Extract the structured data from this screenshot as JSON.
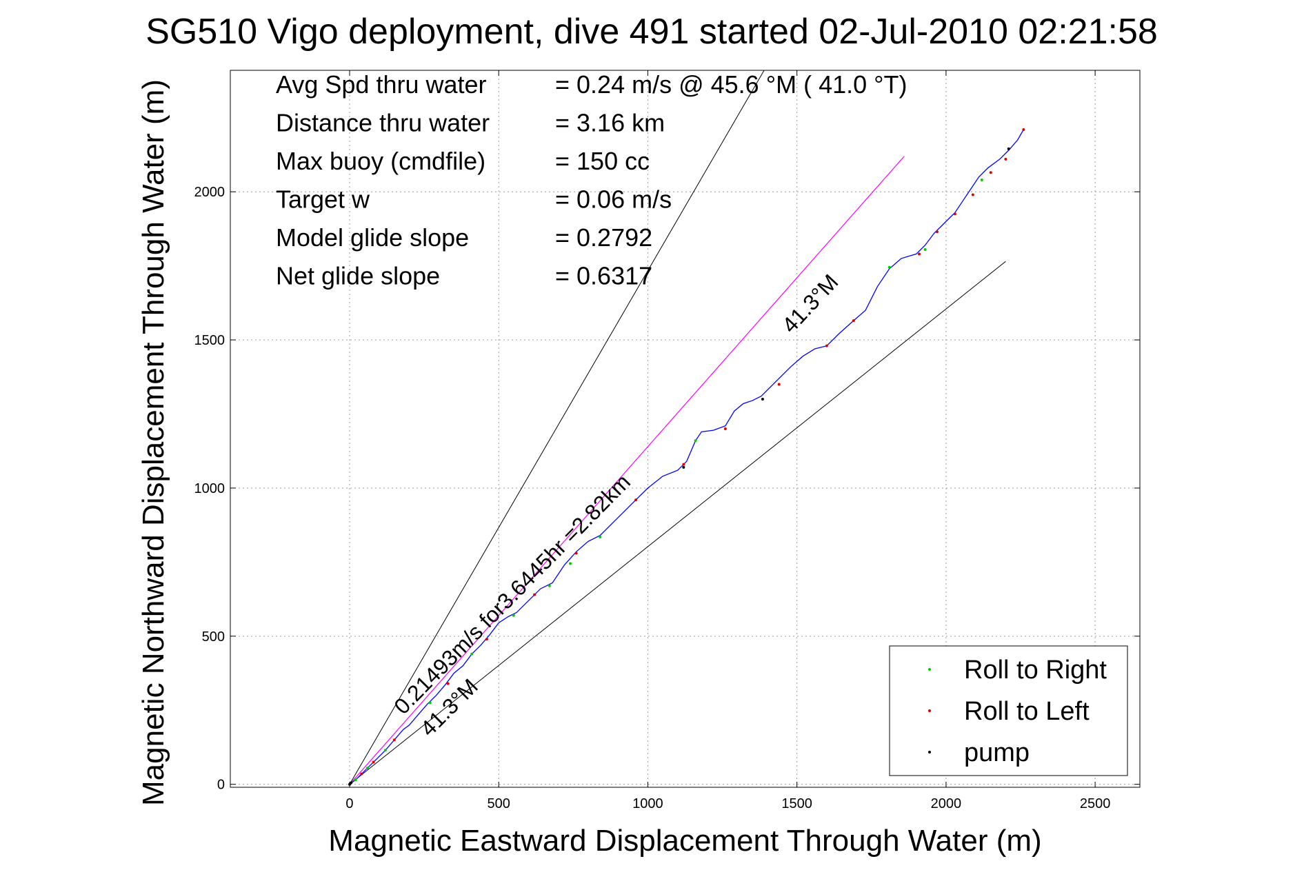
{
  "chart_data": {
    "type": "line",
    "title": "SG510 Vigo deployment, dive 491 started 02-Jul-2010 02:21:58",
    "xlabel": "Magnetic Eastward Displacement Through Water (m)",
    "ylabel": "Magnetic Northward Displacement Through Water (m)",
    "xlim": [
      -400,
      2650
    ],
    "ylim": [
      -10,
      2410
    ],
    "xticks": [
      0,
      500,
      1000,
      1500,
      2000,
      2500
    ],
    "yticks": [
      0,
      500,
      1000,
      1500,
      2000
    ],
    "grid": true,
    "info_lines": [
      {
        "label": "Avg Spd thru water",
        "value": "=  0.24 m/s @  45.6 °M ( 41.0 °T)"
      },
      {
        "label": "Distance thru water",
        "value": "=  3.16 km"
      },
      {
        "label": "Max buoy (cmdfile)",
        "value": "= 150 cc"
      },
      {
        "label": "Target w",
        "value": "= 0.06 m/s"
      },
      {
        "label": "Model glide slope",
        "value": "= 0.2792"
      },
      {
        "label": "Net glide slope",
        "value": "= 0.6317"
      }
    ],
    "annotations": {
      "speed_text": "0.21493m/s for3.6445hr =2.82km",
      "heading_text_upper": "41.3°M",
      "heading_text_lower": "41.3°M"
    },
    "lines": {
      "bracket_upper": {
        "x": [
          0,
          1390
        ],
        "y": [
          0,
          2410
        ]
      },
      "bracket_lower": {
        "x": [
          0,
          2200
        ],
        "y": [
          0,
          1765
        ]
      },
      "heading": {
        "x": [
          0,
          1860
        ],
        "y": [
          0,
          2120
        ]
      }
    },
    "series": [
      {
        "name": "track",
        "color": "#0000ff",
        "x": [
          0,
          20,
          40,
          60,
          80,
          100,
          120,
          150,
          180,
          200,
          230,
          260,
          290,
          320,
          350,
          380,
          410,
          440,
          470,
          500,
          530,
          560,
          600,
          640,
          680,
          720,
          760,
          800,
          840,
          880,
          920,
          960,
          1000,
          1050,
          1100,
          1130,
          1160,
          1180,
          1220,
          1260,
          1290,
          1320,
          1350,
          1380,
          1410,
          1440,
          1480,
          1520,
          1560,
          1600,
          1640,
          1690,
          1730,
          1770,
          1810,
          1850,
          1900,
          1930,
          1960,
          1990,
          2030,
          2070,
          2110,
          2140,
          2180,
          2210,
          2240,
          2260
        ],
        "y": [
          0,
          15,
          35,
          55,
          75,
          95,
          115,
          150,
          185,
          200,
          235,
          270,
          300,
          335,
          375,
          400,
          440,
          470,
          505,
          545,
          565,
          580,
          620,
          660,
          680,
          740,
          785,
          820,
          840,
          880,
          920,
          960,
          1000,
          1040,
          1060,
          1090,
          1160,
          1190,
          1195,
          1210,
          1260,
          1285,
          1295,
          1310,
          1340,
          1370,
          1410,
          1445,
          1470,
          1480,
          1520,
          1565,
          1600,
          1680,
          1740,
          1775,
          1790,
          1820,
          1860,
          1890,
          1930,
          1990,
          2050,
          2080,
          2110,
          2140,
          2175,
          2210
        ]
      }
    ],
    "markers": {
      "green": {
        "x": [
          20,
          60,
          120,
          270,
          410,
          550,
          670,
          740,
          840,
          1160,
          1810,
          1930,
          2120
        ],
        "y": [
          15,
          55,
          115,
          275,
          440,
          570,
          670,
          745,
          835,
          1160,
          1745,
          1805,
          2040
        ]
      },
      "red": {
        "x": [
          40,
          80,
          150,
          330,
          460,
          620,
          760,
          960,
          1120,
          1260,
          1440,
          1600,
          1690,
          1910,
          1970,
          2030,
          2090,
          2150,
          2200,
          2260
        ],
        "y": [
          35,
          75,
          150,
          340,
          490,
          640,
          780,
          960,
          1080,
          1200,
          1350,
          1480,
          1565,
          1790,
          1865,
          1925,
          1990,
          2065,
          2110,
          2210
        ]
      },
      "black": {
        "x": [
          0,
          5,
          1120,
          1385,
          2210
        ],
        "y": [
          0,
          5,
          1070,
          1300,
          2145
        ]
      }
    },
    "legend": {
      "placement": "bottom-right",
      "entries": [
        {
          "label": "Roll to Right",
          "color": "#00cc00"
        },
        {
          "label": "Roll to Left",
          "color": "#dd0000"
        },
        {
          "label": "pump",
          "color": "#000000"
        }
      ]
    },
    "colors": {
      "track": "#0000ff",
      "heading": "#ff00ff",
      "bracket": "#000000"
    }
  }
}
